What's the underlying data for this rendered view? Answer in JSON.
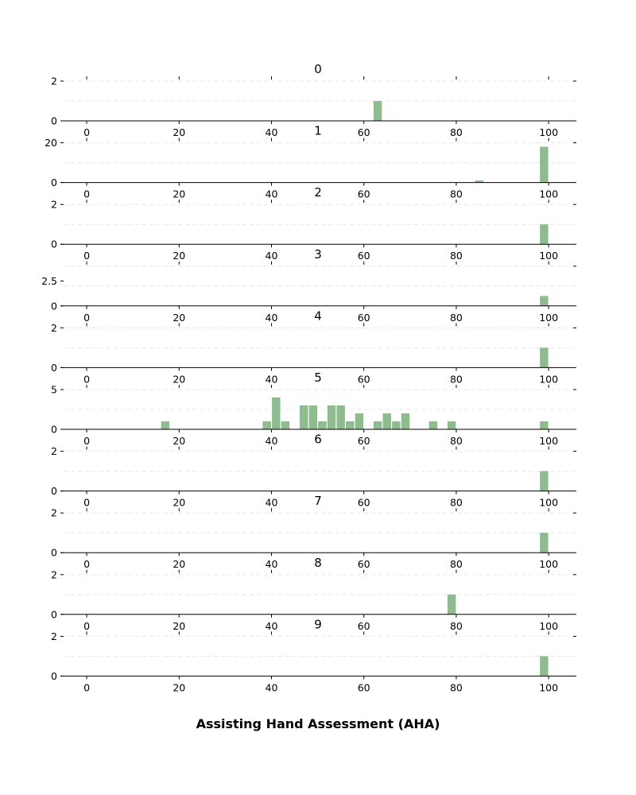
{
  "chart_data": {
    "type": "bar",
    "xlabel": "Assisting Hand Assessment (AHA)",
    "xlim": [
      -5,
      106
    ],
    "x_ticks": [
      0,
      20,
      40,
      60,
      80,
      100
    ],
    "bar_width": 1.8,
    "bar_color": "#8fbc8f",
    "grid": "horizontal dashed",
    "legend": "none",
    "panels": [
      {
        "title": "0",
        "ylim": [
          0,
          2
        ],
        "y_ticks": [
          0,
          2
        ],
        "bars": [
          {
            "x": 63,
            "count": 1
          }
        ]
      },
      {
        "title": "1",
        "ylim": [
          0,
          20
        ],
        "y_ticks": [
          0,
          20
        ],
        "bars": [
          {
            "x": 85,
            "count": 1
          },
          {
            "x": 99,
            "count": 18
          }
        ]
      },
      {
        "title": "2",
        "ylim": [
          0,
          2
        ],
        "y_ticks": [
          0,
          2
        ],
        "bars": [
          {
            "x": 99,
            "count": 1
          }
        ]
      },
      {
        "title": "3",
        "ylim": [
          0,
          4
        ],
        "y_ticks": [
          0,
          2.5
        ],
        "bars": [
          {
            "x": 99,
            "count": 1
          }
        ]
      },
      {
        "title": "4",
        "ylim": [
          0,
          2
        ],
        "y_ticks": [
          0,
          2
        ],
        "bars": [
          {
            "x": 99,
            "count": 1
          }
        ]
      },
      {
        "title": "5",
        "ylim": [
          0,
          5
        ],
        "y_ticks": [
          0,
          5
        ],
        "bars": [
          {
            "x": 17,
            "count": 1
          },
          {
            "x": 39,
            "count": 1
          },
          {
            "x": 41,
            "count": 4
          },
          {
            "x": 43,
            "count": 1
          },
          {
            "x": 47,
            "count": 3
          },
          {
            "x": 49,
            "count": 3
          },
          {
            "x": 51,
            "count": 1
          },
          {
            "x": 53,
            "count": 3
          },
          {
            "x": 55,
            "count": 3
          },
          {
            "x": 57,
            "count": 1
          },
          {
            "x": 59,
            "count": 2
          },
          {
            "x": 63,
            "count": 1
          },
          {
            "x": 65,
            "count": 2
          },
          {
            "x": 67,
            "count": 1
          },
          {
            "x": 69,
            "count": 2
          },
          {
            "x": 75,
            "count": 1
          },
          {
            "x": 79,
            "count": 1
          },
          {
            "x": 99,
            "count": 1
          }
        ]
      },
      {
        "title": "6",
        "ylim": [
          0,
          2
        ],
        "y_ticks": [
          0,
          2
        ],
        "bars": [
          {
            "x": 99,
            "count": 1
          }
        ]
      },
      {
        "title": "7",
        "ylim": [
          0,
          2
        ],
        "y_ticks": [
          0,
          2
        ],
        "bars": [
          {
            "x": 99,
            "count": 1
          }
        ]
      },
      {
        "title": "8",
        "ylim": [
          0,
          2
        ],
        "y_ticks": [
          0,
          2
        ],
        "bars": [
          {
            "x": 79,
            "count": 1
          }
        ]
      },
      {
        "title": "9",
        "ylim": [
          0,
          2
        ],
        "y_ticks": [
          0,
          2
        ],
        "bars": [
          {
            "x": 99,
            "count": 1
          }
        ]
      }
    ]
  }
}
